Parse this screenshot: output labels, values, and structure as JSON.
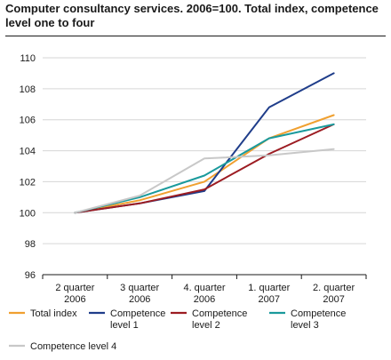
{
  "chart_data": {
    "type": "line",
    "title": "Computer consultancy services. 2006=100. Total index, competence level one to four",
    "xlabel": "",
    "ylabel": "",
    "categories": [
      [
        "2 quarter",
        "2006"
      ],
      [
        "3 quarter",
        "2006"
      ],
      [
        "4. quarter",
        "2006"
      ],
      [
        "1. quarter",
        "2007"
      ],
      [
        "2. quarter",
        "2007"
      ]
    ],
    "ylim": [
      96,
      110
    ],
    "yticks": [
      96,
      98,
      100,
      102,
      104,
      106,
      108,
      110
    ],
    "grid": "horizontal",
    "legend_position": "bottom",
    "series": [
      {
        "name": "Total index",
        "legend_lines": [
          "Total index"
        ],
        "color": "#f0a030",
        "values": [
          100,
          100.8,
          102.0,
          104.8,
          106.3
        ]
      },
      {
        "name": "Competence level 1",
        "legend_lines": [
          "Competence",
          "level 1"
        ],
        "color": "#1f3d8a",
        "values": [
          100,
          100.6,
          101.4,
          106.8,
          109.0
        ]
      },
      {
        "name": "Competence level 2",
        "legend_lines": [
          "Competence",
          "level  2"
        ],
        "color": "#9c1c22",
        "values": [
          100,
          100.6,
          101.5,
          103.8,
          105.7
        ]
      },
      {
        "name": "Competence level 3",
        "legend_lines": [
          "Competence",
          "level 3"
        ],
        "color": "#1a9a9c",
        "values": [
          100,
          101.0,
          102.4,
          104.8,
          105.7
        ]
      },
      {
        "name": "Competence level 4",
        "legend_lines": [
          "Competence level  4"
        ],
        "color": "#c8c8c8",
        "values": [
          100,
          101.1,
          103.5,
          103.7,
          104.1
        ]
      }
    ]
  }
}
